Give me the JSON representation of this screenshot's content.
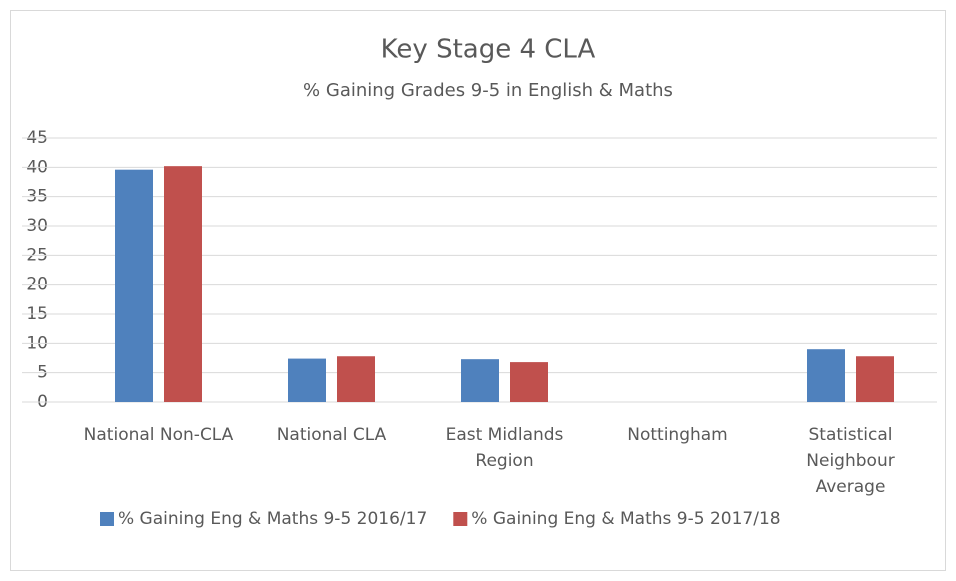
{
  "chart_data": {
    "type": "bar",
    "title": "Key Stage 4 CLA",
    "subtitle": "% Gaining Grades 9-5 in English & Maths",
    "categories": [
      "National Non-CLA",
      "National CLA",
      "East Midlands Region",
      "Nottingham",
      "Statistical Neighbour Average"
    ],
    "series": [
      {
        "name": "% Gaining Eng & Maths 9-5 2016/17",
        "color": "#4f81bd",
        "values": [
          39.6,
          7.4,
          7.3,
          null,
          9.0
        ]
      },
      {
        "name": "% Gaining Eng & Maths 9-5 2017/18",
        "color": "#c0504d",
        "values": [
          40.2,
          7.8,
          6.8,
          null,
          7.8
        ]
      }
    ],
    "ylim": [
      0,
      45
    ],
    "yticks": [
      0,
      5,
      10,
      15,
      20,
      25,
      30,
      35,
      40,
      45
    ],
    "grid": true,
    "legend": "bottom"
  }
}
